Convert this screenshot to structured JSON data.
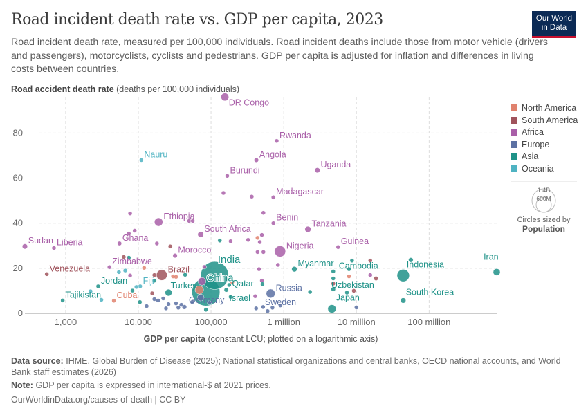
{
  "title": "Road incident death rate vs. GDP per capita, 2023",
  "subtitle": "Road incident death rate, measured per 100,000 individuals. Road incident deaths include those from motor vehicle (drivers and passengers), motorcyclists, cyclists and pedestrians. GDP per capita is adjusted for inflation and differences in living costs between countries.",
  "logo": {
    "line1": "Our World",
    "line2": "in Data"
  },
  "footer": {
    "source_label": "Data source:",
    "source": "IHME, Global Burden of Disease (2025); National statistical organizations and central banks, OECD national accounts, and World Bank staff estimates (2026)",
    "note_label": "Note:",
    "note": "GDP per capita is expressed in international-$ at 2021 prices.",
    "url": "OurWorldinData.org/causes-of-death | CC BY"
  },
  "chart_data": {
    "type": "scatter",
    "title": "Road incident death rate vs. GDP per capita, 2023",
    "ylabel_bold": "Road accident death rate",
    "ylabel_unit": "(deaths per 100,000 individuals)",
    "xlabel_bold": "GDP per capita",
    "xlabel_unit": "(constant LCU; plotted on a logarithmic axis)",
    "x_scale": "log",
    "xlim": [
      275,
      850000000
    ],
    "ylim": [
      0,
      97
    ],
    "grid": true,
    "x_ticks": [
      {
        "v": 1000,
        "label": "1,000"
      },
      {
        "v": 10000,
        "label": "10,000"
      },
      {
        "v": 100000,
        "label": "100,000"
      },
      {
        "v": 1000000,
        "label": "1 million"
      },
      {
        "v": 10000000,
        "label": "10 million"
      },
      {
        "v": 100000000,
        "label": "100 million"
      }
    ],
    "y_ticks": [
      {
        "v": 0,
        "label": "0"
      },
      {
        "v": 20,
        "label": "20"
      },
      {
        "v": 40,
        "label": "40"
      },
      {
        "v": 60,
        "label": "60"
      },
      {
        "v": 80,
        "label": "80"
      }
    ],
    "legend_position": "right",
    "regions": [
      {
        "name": "North America",
        "color": "#e0826e"
      },
      {
        "name": "South America",
        "color": "#a0535c"
      },
      {
        "name": "Africa",
        "color": "#a95fa8"
      },
      {
        "name": "Europe",
        "color": "#5c71a3"
      },
      {
        "name": "Asia",
        "color": "#1f9288"
      },
      {
        "name": "Oceania",
        "color": "#4fb3c2"
      }
    ],
    "size_legend": {
      "title": "Circles sized by",
      "variable": "Population",
      "large": "1.4B",
      "small": "600M"
    },
    "points": [
      {
        "label": "DR Congo",
        "region": "Africa",
        "x": 155000,
        "y": 96,
        "pop": 110000000
      },
      {
        "label": "Rwanda",
        "region": "Africa",
        "x": 800000,
        "y": 76.5,
        "pop": 14000000
      },
      {
        "label": "Angola",
        "region": "Africa",
        "x": 420000,
        "y": 68,
        "pop": 37000000
      },
      {
        "label": "Burundi",
        "region": "Africa",
        "x": 167000,
        "y": 61,
        "pop": 13000000
      },
      {
        "label": "Uganda",
        "region": "Africa",
        "x": 2900000,
        "y": 63.5,
        "pop": 48000000
      },
      {
        "label": "Madagascar",
        "region": "Africa",
        "x": 720000,
        "y": 51.5,
        "pop": 30000000
      },
      {
        "label": "Benin",
        "region": "Africa",
        "x": 720000,
        "y": 40,
        "pop": 14000000
      },
      {
        "label": "Tanzania",
        "region": "Africa",
        "x": 2150000,
        "y": 37.3,
        "pop": 67000000
      },
      {
        "label": "Guinea",
        "region": "Africa",
        "x": 5600000,
        "y": 29.4,
        "pop": 14000000
      },
      {
        "label": "Nigeria",
        "region": "Africa",
        "x": 890000,
        "y": 27.5,
        "pop": 225000000
      },
      {
        "label": "Ethiopia",
        "region": "Africa",
        "x": 19000,
        "y": 40.5,
        "pop": 128000000
      },
      {
        "label": "South Africa",
        "region": "Africa",
        "x": 72000,
        "y": 35,
        "pop": 63000000
      },
      {
        "label": "Ghana",
        "region": "Africa",
        "x": 5500,
        "y": 31,
        "pop": 34000000
      },
      {
        "label": "Morocco",
        "region": "Africa",
        "x": 32000,
        "y": 25.6,
        "pop": 38000000
      },
      {
        "label": "Sudan",
        "region": "Africa",
        "x": 275,
        "y": 29.7,
        "pop": 50000000
      },
      {
        "label": "Liberia",
        "region": "Africa",
        "x": 690,
        "y": 29,
        "pop": 5000000
      },
      {
        "label": "Zimbabwe",
        "region": "Africa",
        "x": 4000,
        "y": 20.5,
        "pop": 16000000
      },
      {
        "label": "Venezuela",
        "region": "South America",
        "x": 550,
        "y": 17.4,
        "pop": 28000000
      },
      {
        "label": "Brazil",
        "region": "South America",
        "x": 21000,
        "y": 17,
        "pop": 211000000
      },
      {
        "label": "China",
        "region": "Asia",
        "x": 112000,
        "y": 16.8,
        "pop": 1420000000
      },
      {
        "label": "India",
        "region": "Asia",
        "x": 85000,
        "y": 9.5,
        "pop": 1430000000
      },
      {
        "label": "Jordan",
        "region": "Asia",
        "x": 2800,
        "y": 12,
        "pop": 11000000
      },
      {
        "label": "Tajikistan",
        "region": "Asia",
        "x": 910,
        "y": 5.7,
        "pop": 10000000
      },
      {
        "label": "Cuba",
        "region": "North America",
        "x": 4600,
        "y": 5.6,
        "pop": 11000000
      },
      {
        "label": "Fiji",
        "region": "Oceania",
        "x": 10600,
        "y": 12,
        "pop": 900000
      },
      {
        "label": "Turkey",
        "region": "Asia",
        "x": 26000,
        "y": 9.2,
        "pop": 86000000
      },
      {
        "label": "Germany",
        "region": "Europe",
        "x": 72000,
        "y": 7,
        "pop": 84000000
      },
      {
        "label": "Qatar",
        "region": "Asia",
        "x": 178000,
        "y": 12.6,
        "pop": 3000000
      },
      {
        "label": "Israel",
        "region": "Asia",
        "x": 186000,
        "y": 7.3,
        "pop": 9800000
      },
      {
        "label": "Russia",
        "region": "Europe",
        "x": 660000,
        "y": 8.8,
        "pop": 145000000
      },
      {
        "label": "Sweden",
        "region": "Europe",
        "x": 700000,
        "y": 2.5,
        "pop": 10500000
      },
      {
        "label": "Myanmar",
        "region": "Asia",
        "x": 1400000,
        "y": 19.6,
        "pop": 54000000
      },
      {
        "label": "Cambodia",
        "region": "Asia",
        "x": 4800000,
        "y": 18.6,
        "pop": 17000000
      },
      {
        "label": "Indonesia",
        "region": "Asia",
        "x": 44000000,
        "y": 16.8,
        "pop": 278000000
      },
      {
        "label": "Iran",
        "region": "Asia",
        "x": 850000000,
        "y": 18.3,
        "pop": 90000000
      },
      {
        "label": "Uzbekistan",
        "region": "Asia",
        "x": 4800000,
        "y": 10.7,
        "pop": 36000000
      },
      {
        "label": "Japan",
        "region": "Asia",
        "x": 4600000,
        "y": 2,
        "pop": 124000000
      },
      {
        "label": "South Korea",
        "region": "Asia",
        "x": 44000000,
        "y": 5.7,
        "pop": 52000000
      },
      {
        "label": "Nauru",
        "region": "Oceania",
        "x": 11000,
        "y": 68,
        "pop": 12000
      },
      {
        "region": "Africa",
        "x": 148000,
        "y": 53.4
      },
      {
        "region": "Africa",
        "x": 363000,
        "y": 51.8
      },
      {
        "region": "Africa",
        "x": 7700,
        "y": 44.3
      },
      {
        "region": "Africa",
        "x": 525000,
        "y": 44.6
      },
      {
        "region": "Africa",
        "x": 8900,
        "y": 36.7
      },
      {
        "region": "Africa",
        "x": 7400,
        "y": 35.4
      },
      {
        "region": "Africa",
        "x": 50000,
        "y": 41
      },
      {
        "region": "Africa",
        "x": 56000,
        "y": 41
      },
      {
        "region": "Asia",
        "x": 132000,
        "y": 32.3,
        "pop": 20000000
      },
      {
        "region": "Africa",
        "x": 186000,
        "y": 32,
        "pop": 30000000
      },
      {
        "region": "Africa",
        "x": 324000,
        "y": 32.6
      },
      {
        "region": "North America",
        "x": 436000,
        "y": 33.5
      },
      {
        "region": "Africa",
        "x": 468000,
        "y": 31.6
      },
      {
        "region": "Africa",
        "x": 500000,
        "y": 34.8
      },
      {
        "region": "Africa",
        "x": 18000,
        "y": 31
      },
      {
        "region": "South America",
        "x": 27500,
        "y": 29.7
      },
      {
        "region": "Africa",
        "x": 436000,
        "y": 27.2
      },
      {
        "region": "Africa",
        "x": 525000,
        "y": 27.2
      },
      {
        "region": "South America",
        "x": 6300,
        "y": 25
      },
      {
        "region": "Asia",
        "x": 7400,
        "y": 24.7
      },
      {
        "region": "Africa",
        "x": 81000,
        "y": 20.6
      },
      {
        "region": "Africa",
        "x": 457000,
        "y": 19.6
      },
      {
        "region": "Africa",
        "x": 832000,
        "y": 21.5
      },
      {
        "region": "Oceania",
        "x": 5400,
        "y": 18.3
      },
      {
        "region": "Oceania",
        "x": 6600,
        "y": 19
      },
      {
        "region": "North America",
        "x": 12000,
        "y": 20.2
      },
      {
        "region": "Asia",
        "x": 44000,
        "y": 17.1,
        "pop": 15000000
      },
      {
        "region": "North America",
        "x": 30000,
        "y": 16.4
      },
      {
        "region": "North America",
        "x": 33000,
        "y": 16.2
      },
      {
        "region": "Africa",
        "x": 7700,
        "y": 16.8
      },
      {
        "region": "South America",
        "x": 16600,
        "y": 17,
        "pop": 8000000
      },
      {
        "region": "Africa",
        "x": 500000,
        "y": 14.5
      },
      {
        "region": "Asia",
        "x": 510000,
        "y": 13
      },
      {
        "region": "Asia",
        "x": 16600,
        "y": 14.5
      },
      {
        "region": "Oceania",
        "x": 9400,
        "y": 11.7
      },
      {
        "region": "Asia",
        "x": 8300,
        "y": 10.1
      },
      {
        "region": "South America",
        "x": 15500,
        "y": 8.9,
        "pop": 8000000
      },
      {
        "region": "Oceania",
        "x": 2200,
        "y": 9.8
      },
      {
        "region": "Asia",
        "x": 10500,
        "y": 5
      },
      {
        "region": "Africa",
        "x": 405000,
        "y": 7.6
      },
      {
        "region": "North America",
        "x": 195000,
        "y": 14,
        "pop": 40000000
      },
      {
        "region": "North America",
        "x": 69000,
        "y": 10.4,
        "pop": 130000000
      },
      {
        "region": "Africa",
        "x": 75000,
        "y": 14.2,
        "pop": 110000000
      },
      {
        "region": "Asia",
        "x": 162000,
        "y": 10.4,
        "pop": 35000000
      },
      {
        "region": "Asia",
        "x": 85000,
        "y": 1.6
      },
      {
        "region": "Oceania",
        "x": 3100,
        "y": 6
      },
      {
        "region": "Europe",
        "x": 16600,
        "y": 6.3
      },
      {
        "region": "Europe",
        "x": 18700,
        "y": 5.7
      },
      {
        "region": "Europe",
        "x": 22000,
        "y": 6.6
      },
      {
        "region": "Europe",
        "x": 26000,
        "y": 4.1,
        "pop": 20000000
      },
      {
        "region": "Europe",
        "x": 33000,
        "y": 4.4,
        "pop": 15000000
      },
      {
        "region": "Europe",
        "x": 35500,
        "y": 2.5,
        "pop": 30000000
      },
      {
        "region": "Europe",
        "x": 39000,
        "y": 3.8
      },
      {
        "region": "Europe",
        "x": 43000,
        "y": 2.8,
        "pop": 40000000
      },
      {
        "region": "Europe",
        "x": 55000,
        "y": 5
      },
      {
        "region": "Europe",
        "x": 95000,
        "y": 4.7
      },
      {
        "region": "Europe",
        "x": 13000,
        "y": 3.2
      },
      {
        "region": "Europe",
        "x": 24000,
        "y": 2.2
      },
      {
        "region": "Europe",
        "x": 417000,
        "y": 2.2
      },
      {
        "region": "Europe",
        "x": 520000,
        "y": 2.8
      },
      {
        "region": "Europe",
        "x": 900000,
        "y": 3.5
      },
      {
        "region": "Europe",
        "x": 600000,
        "y": 1
      },
      {
        "region": "Asia",
        "x": 2300000,
        "y": 9.5
      },
      {
        "region": "Asia",
        "x": 4800000,
        "y": 15.5,
        "pop": 20000000
      },
      {
        "region": "Asia",
        "x": 7400000,
        "y": 9.2
      },
      {
        "region": "Asia",
        "x": 7900000,
        "y": 19.6
      },
      {
        "region": "North America",
        "x": 7900000,
        "y": 16.4
      },
      {
        "region": "Asia",
        "x": 8700000,
        "y": 23.4
      },
      {
        "region": "South America",
        "x": 15500000,
        "y": 23.4
      },
      {
        "region": "Africa",
        "x": 15500000,
        "y": 17
      },
      {
        "region": "South America",
        "x": 18600000,
        "y": 15.5,
        "pop": 35000000
      },
      {
        "region": "South America",
        "x": 4800000,
        "y": 13.2
      },
      {
        "region": "Europe",
        "x": 10000000,
        "y": 2.6
      },
      {
        "region": "South America",
        "x": 9200000,
        "y": 10
      },
      {
        "region": "Asia",
        "x": 56000000,
        "y": 23.7,
        "pop": 40000000
      }
    ]
  }
}
